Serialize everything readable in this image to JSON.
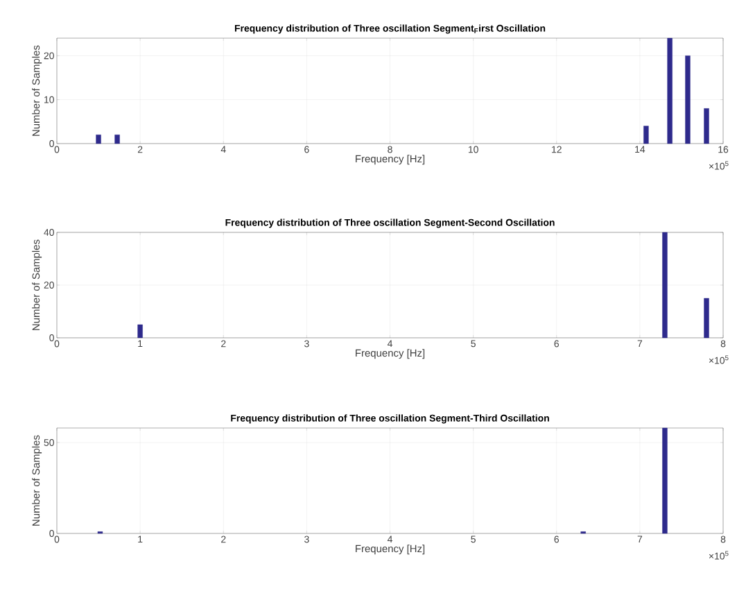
{
  "chart_data": [
    {
      "type": "bar",
      "title": "Frequency distribution of Three oscillation Segment$_{F}$irst Oscillation",
      "xlabel": "Frequency [Hz]",
      "ylabel": "Number of Samples",
      "color": "#2e2a8c",
      "grid": true,
      "x": [
        1.0,
        1.45,
        14.15,
        14.72,
        15.15,
        15.6
      ],
      "values": [
        2,
        2,
        4,
        24,
        20,
        8
      ],
      "xlim": [
        0,
        16
      ],
      "ylim": [
        0,
        24
      ],
      "xticks": [
        0,
        2,
        4,
        6,
        8,
        10,
        12,
        14,
        16
      ],
      "yticks": [
        0,
        10,
        20
      ],
      "annotations": [
        "×10$^{5}$"
      ]
    },
    {
      "type": "bar",
      "title": "Frequency distribution of Three oscillation Segment-Second Oscillation",
      "xlabel": "Frequency [Hz]",
      "ylabel": "Number of Samples",
      "color": "#2e2a8c",
      "grid": true,
      "x": [
        1.0,
        7.3,
        7.8
      ],
      "values": [
        5,
        40,
        15
      ],
      "xlim": [
        0,
        8
      ],
      "ylim": [
        0,
        40
      ],
      "xticks": [
        0,
        1,
        2,
        3,
        4,
        5,
        6,
        7,
        8
      ],
      "yticks": [
        0,
        20,
        40
      ],
      "annotations": [
        "×10$^{5}$"
      ]
    },
    {
      "type": "bar",
      "title": "Frequency distribution of Three oscillation Segment-Third Oscillation",
      "xlabel": "Frequency [Hz]",
      "ylabel": "Number of Samples",
      "color": "#2e2a8c",
      "grid": true,
      "x": [
        0.52,
        6.32,
        7.3
      ],
      "values": [
        1,
        1,
        58
      ],
      "xlim": [
        0,
        8
      ],
      "ylim": [
        0,
        58
      ],
      "xticks": [
        0,
        1,
        2,
        3,
        4,
        5,
        6,
        7,
        8
      ],
      "yticks": [
        0,
        50
      ],
      "annotations": [
        "×10$^{5}$"
      ]
    }
  ]
}
